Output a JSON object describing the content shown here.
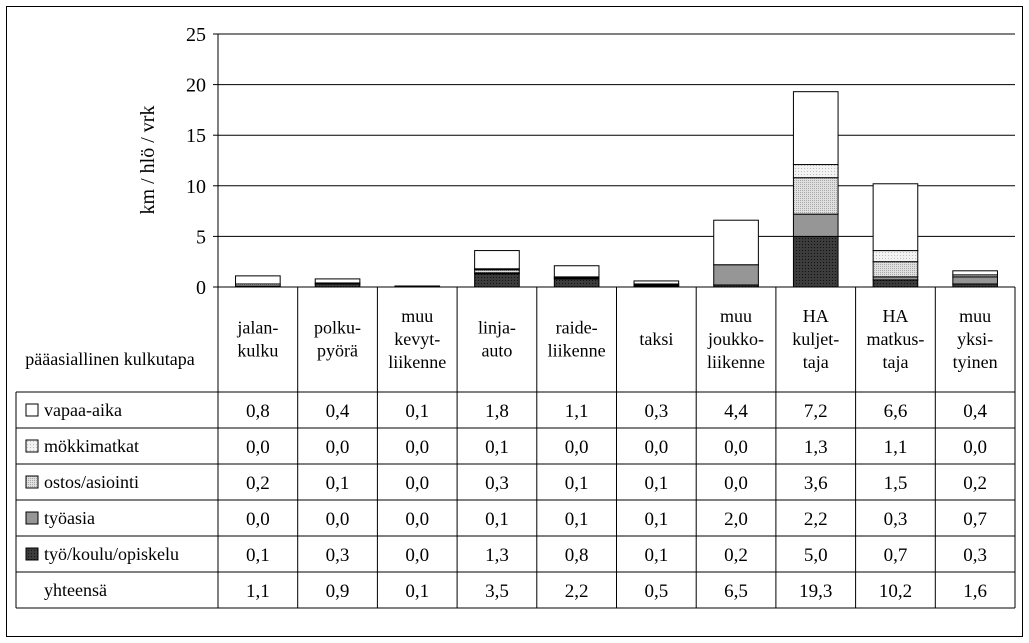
{
  "chart_data": {
    "type": "bar",
    "stacked": true,
    "ylabel": "km / hlö / vrk",
    "ylim": [
      0,
      25
    ],
    "yticks": [
      "0",
      "5",
      "10",
      "15",
      "20",
      "25"
    ],
    "grid": true,
    "table_corner_label": "pääasiallinen kulkutapa",
    "categories": [
      [
        "jalan-",
        "kulku"
      ],
      [
        "polku-",
        "pyörä"
      ],
      [
        "muu",
        "kevyt-",
        "liikenne"
      ],
      [
        "linja-",
        "auto"
      ],
      [
        "raide-",
        "liikenne"
      ],
      [
        "taksi"
      ],
      [
        "muu",
        "joukko-",
        "liikenne"
      ],
      [
        "HA",
        "kuljet-",
        "taja"
      ],
      [
        "HA",
        "matkus-",
        "taja"
      ],
      [
        "muu",
        "yksi-",
        "tyinen"
      ]
    ],
    "series": [
      {
        "name": "vapaa-aika",
        "values": [
          0.8,
          0.4,
          0.1,
          1.8,
          1.1,
          0.3,
          4.4,
          7.2,
          6.6,
          0.4
        ],
        "labels": [
          "0,8",
          "0,4",
          "0,1",
          "1,8",
          "1,1",
          "0,3",
          "4,4",
          "7,2",
          "6,6",
          "0,4"
        ]
      },
      {
        "name": "mökkimatkat",
        "values": [
          0.0,
          0.0,
          0.0,
          0.1,
          0.0,
          0.0,
          0.0,
          1.3,
          1.1,
          0.0
        ],
        "labels": [
          "0,0",
          "0,0",
          "0,0",
          "0,1",
          "0,0",
          "0,0",
          "0,0",
          "1,3",
          "1,1",
          "0,0"
        ]
      },
      {
        "name": "ostos/asiointi",
        "values": [
          0.2,
          0.1,
          0.0,
          0.3,
          0.1,
          0.1,
          0.0,
          3.6,
          1.5,
          0.2
        ],
        "labels": [
          "0,2",
          "0,1",
          "0,0",
          "0,3",
          "0,1",
          "0,1",
          "0,0",
          "3,6",
          "1,5",
          "0,2"
        ]
      },
      {
        "name": "työasia",
        "values": [
          0.0,
          0.0,
          0.0,
          0.1,
          0.1,
          0.1,
          2.0,
          2.2,
          0.3,
          0.7
        ],
        "labels": [
          "0,0",
          "0,0",
          "0,0",
          "0,1",
          "0,1",
          "0,1",
          "2,0",
          "2,2",
          "0,3",
          "0,7"
        ]
      },
      {
        "name": "työ/koulu/opiskelu",
        "values": [
          0.1,
          0.3,
          0.0,
          1.3,
          0.8,
          0.1,
          0.2,
          5.0,
          0.7,
          0.3
        ],
        "labels": [
          "0,1",
          "0,3",
          "0,0",
          "1,3",
          "0,8",
          "0,1",
          "0,2",
          "5,0",
          "0,7",
          "0,3"
        ]
      }
    ],
    "total": {
      "name": "yhteensä",
      "values": [
        1.1,
        0.9,
        0.1,
        3.5,
        2.2,
        0.5,
        6.5,
        19.3,
        10.2,
        1.6
      ],
      "labels": [
        "1,1",
        "0,9",
        "0,1",
        "3,5",
        "2,2",
        "0,5",
        "6,5",
        "19,3",
        "10,2",
        "1,6"
      ]
    },
    "colors": {
      "vapaa-aika": "#ffffff",
      "mökkimatkat": "#f0f0f0",
      "ostos/asiointi": "#d9d9d9",
      "työasia": "#969696",
      "työ/koulu/opiskelu": "#3a3a3a"
    },
    "patterns": {
      "mökkimatkat": "dots",
      "ostos/asiointi": "dots",
      "työ/koulu/opiskelu": "dots"
    }
  }
}
